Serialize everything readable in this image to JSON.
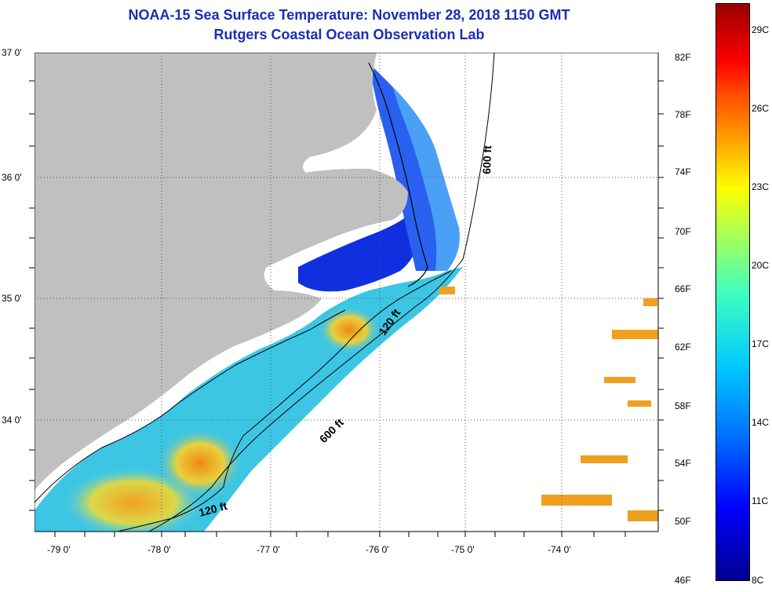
{
  "title_line1": "NOAA-15 Sea Surface Temperature:  November 28, 2018 1150 GMT",
  "title_line2": "Rutgers Coastal Ocean Observation Lab",
  "lat_labels": [
    "37 0'",
    "36 0'",
    "35 0'",
    "34 0'"
  ],
  "lon_labels": [
    "-79 0'",
    "-78 0'",
    "-77 0'",
    "-76 0'",
    "-75 0'",
    "-74 0'"
  ],
  "isobath_labels": [
    "600 ft",
    "120 ft",
    "600 ft",
    "120 ft"
  ],
  "colorbar": {
    "fahrenheit": [
      "82F",
      "78F",
      "74F",
      "70F",
      "66F",
      "62F",
      "58F",
      "54F",
      "50F",
      "46F"
    ],
    "celsius": [
      "29C",
      "26C",
      "23C",
      "20C",
      "17C",
      "14C",
      "11C",
      "8C"
    ]
  },
  "colors": {
    "land": "#c0c0c0",
    "title": "#1a2db4"
  }
}
